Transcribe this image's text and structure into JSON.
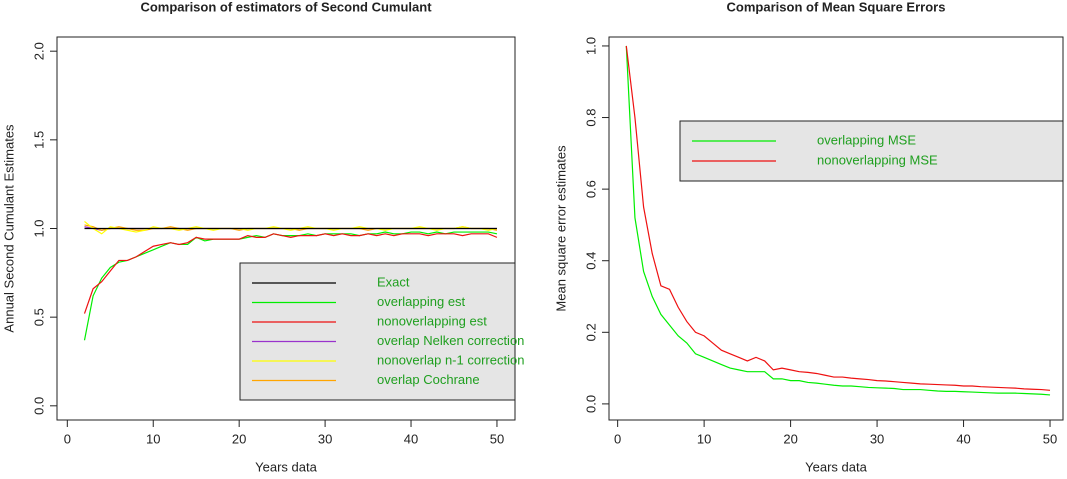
{
  "chart_data": [
    {
      "type": "line",
      "title": "Comparison of estimators of Second Cumulant",
      "xlabel": "Years data",
      "ylabel": "Annual Second Cumulant Estimates",
      "x": [
        2,
        3,
        4,
        5,
        6,
        7,
        8,
        9,
        10,
        11,
        12,
        13,
        14,
        15,
        16,
        17,
        18,
        19,
        20,
        21,
        22,
        23,
        24,
        25,
        26,
        27,
        28,
        29,
        30,
        31,
        32,
        33,
        34,
        35,
        36,
        37,
        38,
        39,
        40,
        41,
        42,
        43,
        44,
        45,
        46,
        47,
        48,
        49,
        50
      ],
      "series": [
        {
          "name": "overlap Nelken correction",
          "color": "#9932cc",
          "values": [
            1.01,
            1.0,
            0.99,
            1.0,
            1.0,
            1.0,
            1.0,
            1.0,
            1.0,
            1.0,
            1.0,
            1.0,
            1.0,
            1.0,
            1.0,
            1.0,
            1.0,
            1.0,
            1.0,
            1.0,
            1.0,
            1.0,
            1.0,
            1.0,
            1.0,
            1.0,
            1.0,
            1.0,
            1.0,
            1.0,
            1.0,
            1.0,
            1.0,
            1.0,
            1.0,
            1.0,
            1.0,
            1.0,
            1.0,
            1.0,
            1.0,
            1.0,
            1.0,
            1.0,
            1.0,
            1.0,
            1.0,
            1.0,
            1.0
          ],
          "legend_order": 3
        },
        {
          "name": "overlap Cochrane",
          "color": "#ffa500",
          "values": [
            1.02,
            1.01,
            0.99,
            1.0,
            1.01,
            1.0,
            0.99,
            0.99,
            1.0,
            1.0,
            1.01,
            1.0,
            0.99,
            1.0,
            1.0,
            1.0,
            1.0,
            1.0,
            0.99,
            1.0,
            1.0,
            1.0,
            1.0,
            1.0,
            1.0,
            0.99,
            1.0,
            1.0,
            1.0,
            1.0,
            1.0,
            1.0,
            1.0,
            0.99,
            1.0,
            1.0,
            1.0,
            1.0,
            1.0,
            1.0,
            1.0,
            1.0,
            1.0,
            1.0,
            1.01,
            1.0,
            1.0,
            1.0,
            0.99
          ],
          "legend_order": 5
        },
        {
          "name": "nonoverlap n-1 correction",
          "color": "#ffff00",
          "values": [
            1.04,
            1.0,
            0.97,
            1.01,
            1.0,
            0.99,
            0.98,
            0.99,
            1.01,
            1.0,
            1.0,
            0.99,
            1.0,
            1.01,
            1.0,
            0.99,
            1.0,
            1.0,
            1.0,
            0.99,
            1.0,
            1.0,
            1.01,
            1.0,
            0.99,
            1.0,
            1.01,
            1.0,
            1.0,
            0.99,
            1.0,
            1.0,
            1.01,
            1.0,
            1.0,
            0.99,
            1.0,
            1.0,
            1.0,
            1.01,
            1.0,
            0.99,
            1.0,
            1.0,
            1.01,
            1.0,
            1.0,
            0.99,
            1.0
          ],
          "legend_order": 4
        },
        {
          "name": "Exact",
          "color": "#000000",
          "values": [
            1,
            1,
            1,
            1,
            1,
            1,
            1,
            1,
            1,
            1,
            1,
            1,
            1,
            1,
            1,
            1,
            1,
            1,
            1,
            1,
            1,
            1,
            1,
            1,
            1,
            1,
            1,
            1,
            1,
            1,
            1,
            1,
            1,
            1,
            1,
            1,
            1,
            1,
            1,
            1,
            1,
            1,
            1,
            1,
            1,
            1,
            1,
            1,
            1
          ],
          "legend_order": 0
        },
        {
          "name": "overlapping est",
          "color": "#00ee00",
          "values": [
            0.37,
            0.62,
            0.72,
            0.78,
            0.81,
            0.82,
            0.84,
            0.86,
            0.88,
            0.9,
            0.92,
            0.91,
            0.91,
            0.95,
            0.93,
            0.94,
            0.94,
            0.94,
            0.94,
            0.95,
            0.96,
            0.95,
            0.97,
            0.96,
            0.96,
            0.96,
            0.97,
            0.96,
            0.97,
            0.97,
            0.97,
            0.97,
            0.96,
            0.97,
            0.97,
            0.98,
            0.97,
            0.97,
            0.98,
            0.98,
            0.97,
            0.98,
            0.97,
            0.98,
            0.98,
            0.98,
            0.98,
            0.98,
            0.97
          ],
          "legend_order": 1
        },
        {
          "name": "nonoverlapping est",
          "color": "#ee1111",
          "values": [
            0.52,
            0.66,
            0.7,
            0.76,
            0.82,
            0.82,
            0.84,
            0.87,
            0.9,
            0.91,
            0.92,
            0.91,
            0.92,
            0.95,
            0.94,
            0.94,
            0.94,
            0.94,
            0.94,
            0.96,
            0.95,
            0.95,
            0.97,
            0.96,
            0.95,
            0.96,
            0.96,
            0.96,
            0.97,
            0.96,
            0.97,
            0.96,
            0.96,
            0.97,
            0.96,
            0.97,
            0.96,
            0.97,
            0.97,
            0.97,
            0.96,
            0.97,
            0.97,
            0.97,
            0.96,
            0.97,
            0.97,
            0.97,
            0.95
          ],
          "legend_order": 2
        }
      ],
      "xlim": [
        -1.2,
        52.1
      ],
      "ylim": [
        -0.08,
        2.08
      ],
      "xticks": [
        0,
        10,
        20,
        30,
        40,
        50
      ],
      "yticks": [
        {
          "value": 0,
          "label": "0.0"
        },
        0.5,
        {
          "value": 1,
          "label": "1.0"
        },
        1.5,
        {
          "value": 2,
          "label": "2.0"
        }
      ],
      "legend_position": "right",
      "legend_text_color": "#1f9f1f",
      "legend_fill": "#e5e5e5"
    },
    {
      "type": "line",
      "title": "Comparison of Mean Square Errors",
      "xlabel": "Years data",
      "ylabel": "Mean square error estimates",
      "x": [
        1,
        2,
        3,
        4,
        5,
        6,
        7,
        8,
        9,
        10,
        11,
        12,
        13,
        14,
        15,
        16,
        17,
        18,
        19,
        20,
        21,
        22,
        23,
        24,
        25,
        26,
        27,
        28,
        29,
        30,
        31,
        32,
        33,
        34,
        35,
        36,
        37,
        38,
        39,
        40,
        41,
        42,
        43,
        44,
        45,
        46,
        47,
        48,
        49,
        50
      ],
      "series": [
        {
          "name": "overlapping MSE",
          "color": "#00ee00",
          "values": [
            1.0,
            0.52,
            0.37,
            0.3,
            0.25,
            0.22,
            0.19,
            0.17,
            0.14,
            0.13,
            0.12,
            0.11,
            0.1,
            0.095,
            0.09,
            0.09,
            0.09,
            0.07,
            0.07,
            0.065,
            0.065,
            0.06,
            0.058,
            0.055,
            0.052,
            0.05,
            0.05,
            0.048,
            0.046,
            0.045,
            0.044,
            0.043,
            0.04,
            0.04,
            0.04,
            0.038,
            0.036,
            0.035,
            0.035,
            0.034,
            0.033,
            0.032,
            0.031,
            0.03,
            0.03,
            0.03,
            0.029,
            0.028,
            0.027,
            0.025
          ],
          "legend_order": 0
        },
        {
          "name": "nonoverlapping MSE",
          "color": "#ee1111",
          "values": [
            1.0,
            0.8,
            0.55,
            0.42,
            0.33,
            0.32,
            0.27,
            0.23,
            0.2,
            0.19,
            0.17,
            0.15,
            0.14,
            0.13,
            0.12,
            0.13,
            0.12,
            0.095,
            0.1,
            0.095,
            0.09,
            0.088,
            0.085,
            0.08,
            0.075,
            0.075,
            0.072,
            0.07,
            0.068,
            0.065,
            0.064,
            0.062,
            0.06,
            0.058,
            0.056,
            0.055,
            0.054,
            0.053,
            0.052,
            0.05,
            0.05,
            0.048,
            0.047,
            0.046,
            0.045,
            0.044,
            0.042,
            0.041,
            0.04,
            0.038
          ],
          "legend_order": 1
        }
      ],
      "xlim": [
        -1.0,
        51.5
      ],
      "ylim": [
        -0.045,
        1.025
      ],
      "xticks": [
        0,
        10,
        20,
        30,
        40,
        50
      ],
      "yticks": [
        {
          "value": 0,
          "label": "0.0"
        },
        0.2,
        0.4,
        0.6,
        0.8,
        {
          "value": 1,
          "label": "1.0"
        }
      ],
      "legend_position": "topright",
      "legend_text_color": "#1f9f1f",
      "legend_fill": "#e5e5e5"
    }
  ]
}
